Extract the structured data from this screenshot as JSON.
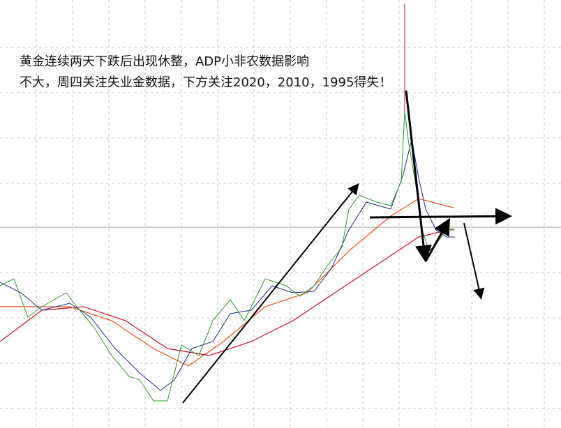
{
  "annotation": {
    "lines": [
      "黄金连续两天下跌后出现休整，ADP小非农数据影响",
      "不大，周四关注失业金数据，下方关注2020，2010，1995得失！"
    ]
  }
}
